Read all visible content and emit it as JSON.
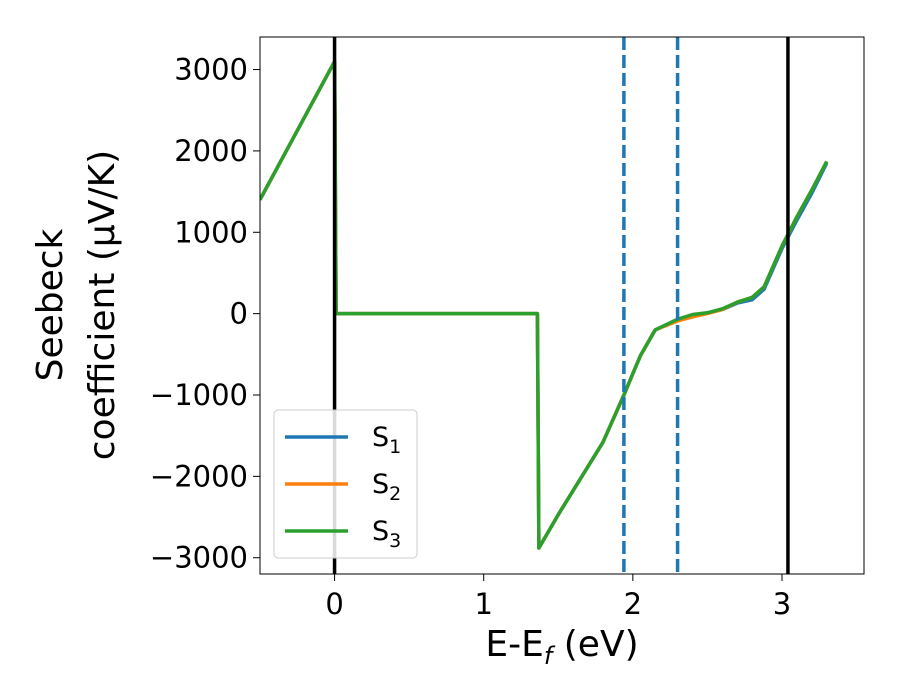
{
  "chart_data": {
    "type": "line",
    "xlabel": "E-E",
    "xlabel_sub": "f",
    "xlabel_unit": " (eV)",
    "ylabel_line1": "Seebeck",
    "ylabel_line2": "coefficient  (μV/K)",
    "xlim": [
      -0.5,
      3.55
    ],
    "ylim": [
      -3200,
      3400
    ],
    "xticks": [
      0,
      1,
      2,
      3
    ],
    "xtick_labels": [
      "0",
      "1",
      "2",
      "3"
    ],
    "yticks": [
      3000,
      2000,
      1000,
      0,
      -1000,
      -2000,
      -3000
    ],
    "ytick_labels": [
      "3000",
      "2000",
      "1000",
      "0",
      "−1000",
      "−2000",
      "−3000"
    ],
    "grid": false,
    "legend_position": "lower-left",
    "vertical_lines": [
      {
        "x": 0.0,
        "style": "solid",
        "color": "#000000"
      },
      {
        "x": 3.04,
        "style": "solid",
        "color": "#000000"
      },
      {
        "x": 1.94,
        "style": "dashed",
        "color": "#1f77b4"
      },
      {
        "x": 2.3,
        "style": "dashed",
        "color": "#1f77b4"
      }
    ],
    "series": [
      {
        "name": "S",
        "sub": "1",
        "color": "#1f77b4",
        "x": [
          -0.5,
          0.0,
          0.0,
          0.01,
          1.36,
          1.37,
          1.5,
          1.8,
          1.94,
          2.05,
          2.15,
          2.3,
          2.4,
          2.5,
          2.6,
          2.7,
          2.8,
          2.88,
          3.0,
          3.1,
          3.2,
          3.3
        ],
        "y": [
          1400,
          3100,
          3100,
          0,
          0,
          -2880,
          -2470,
          -1580,
          -1000,
          -520,
          -200,
          -70,
          -20,
          10,
          50,
          130,
          170,
          300,
          800,
          1150,
          1480,
          1850
        ]
      },
      {
        "name": "S",
        "sub": "2",
        "color": "#ff7f0e",
        "x": [
          -0.5,
          0.0,
          0.0,
          0.01,
          1.36,
          1.37,
          1.5,
          1.8,
          1.94,
          2.05,
          2.15,
          2.3,
          2.4,
          2.5,
          2.6,
          2.7,
          2.8,
          2.88,
          3.0,
          3.1,
          3.2,
          3.3
        ],
        "y": [
          1400,
          3100,
          3100,
          0,
          0,
          -2880,
          -2470,
          -1580,
          -1000,
          -520,
          -200,
          -90,
          -40,
          0,
          50,
          140,
          200,
          330,
          830,
          1190,
          1520,
          1870
        ]
      },
      {
        "name": "S",
        "sub": "3",
        "color": "#2ca02c",
        "x": [
          -0.5,
          0.0,
          0.0,
          0.01,
          1.36,
          1.37,
          1.5,
          1.8,
          1.94,
          2.05,
          2.15,
          2.3,
          2.4,
          2.5,
          2.6,
          2.7,
          2.8,
          2.88,
          3.0,
          3.1,
          3.2,
          3.3
        ],
        "y": [
          1400,
          3100,
          3100,
          0,
          0,
          -2880,
          -2470,
          -1580,
          -1000,
          -520,
          -200,
          -70,
          -10,
          10,
          60,
          140,
          200,
          330,
          830,
          1190,
          1520,
          1870
        ]
      }
    ]
  }
}
